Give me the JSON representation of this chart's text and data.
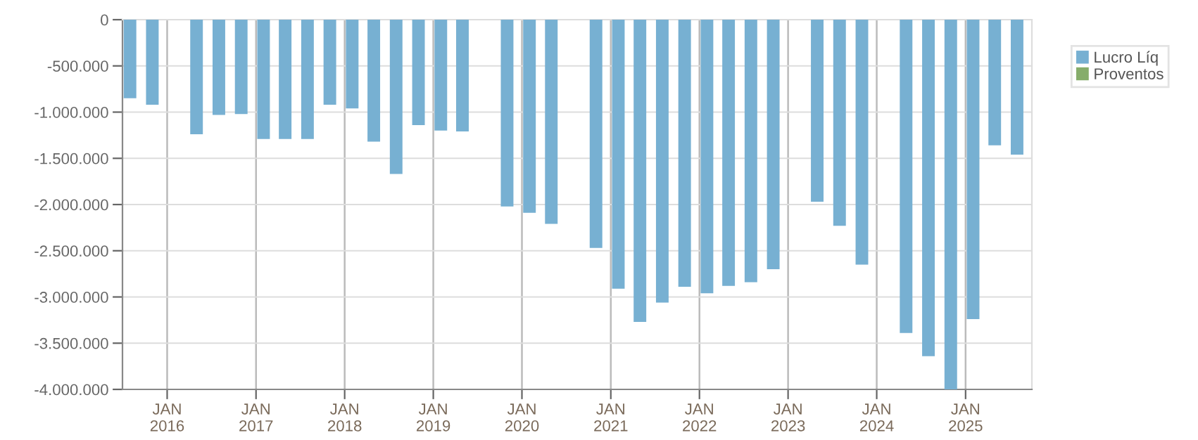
{
  "chart_data": {
    "type": "bar",
    "x": [
      "2015-08",
      "2015-11",
      "2016-05",
      "2016-08",
      "2016-11",
      "2017-02",
      "2017-05",
      "2017-08",
      "2017-11",
      "2018-02",
      "2018-05",
      "2018-08",
      "2018-11",
      "2019-02",
      "2019-05",
      "2019-11",
      "2020-02",
      "2020-05",
      "2020-11",
      "2021-02",
      "2021-05",
      "2021-08",
      "2021-11",
      "2022-02",
      "2022-05",
      "2022-08",
      "2022-11",
      "2023-05",
      "2023-08",
      "2023-11",
      "2024-05",
      "2024-08",
      "2024-11",
      "2025-02",
      "2025-05",
      "2025-08"
    ],
    "series": [
      {
        "name": "Lucro Líq",
        "color": "#77b0d2",
        "values": [
          -850000,
          -920000,
          -1240000,
          -1030000,
          -1020000,
          -1290000,
          -1290000,
          -1290000,
          -920000,
          -960000,
          -1320000,
          -1670000,
          -1140000,
          -1200000,
          -1210000,
          -2020000,
          -2090000,
          -2210000,
          -2470000,
          -2910000,
          -3270000,
          -3060000,
          -2890000,
          -2960000,
          -2880000,
          -2840000,
          -2700000,
          -1970000,
          -2230000,
          -2650000,
          -3390000,
          -3640000,
          -4000000,
          -3240000,
          -1360000,
          -1460000
        ]
      },
      {
        "name": "Proventos",
        "color": "#86ad6b",
        "values": [
          null,
          null,
          null,
          null,
          null,
          null,
          null,
          null,
          null,
          null,
          null,
          null,
          null,
          null,
          null,
          null,
          null,
          null,
          null,
          null,
          null,
          null,
          null,
          null,
          null,
          null,
          null,
          null,
          null,
          null,
          null,
          null,
          null,
          null,
          null,
          null
        ]
      }
    ],
    "xlim": [
      "2015-07-01",
      "2025-10-01"
    ],
    "xticks": [
      {
        "value": "2016-01-01",
        "label": "JAN\n2016"
      },
      {
        "value": "2017-01-01",
        "label": "JAN\n2017"
      },
      {
        "value": "2018-01-01",
        "label": "JAN\n2018"
      },
      {
        "value": "2019-01-01",
        "label": "JAN\n2019"
      },
      {
        "value": "2020-01-01",
        "label": "JAN\n2020"
      },
      {
        "value": "2021-01-01",
        "label": "JAN\n2021"
      },
      {
        "value": "2022-01-01",
        "label": "JAN\n2022"
      },
      {
        "value": "2023-01-01",
        "label": "JAN\n2023"
      },
      {
        "value": "2024-01-01",
        "label": "JAN\n2024"
      },
      {
        "value": "2025-01-01",
        "label": "JAN\n2025"
      }
    ],
    "ylim": [
      -4000000,
      0
    ],
    "yticks": [
      {
        "value": -4000000,
        "label": "-4.000.000"
      },
      {
        "value": -3500000,
        "label": "-3.500.000"
      },
      {
        "value": -3000000,
        "label": "-3.000.000"
      },
      {
        "value": -2500000,
        "label": "-2.500.000"
      },
      {
        "value": -2000000,
        "label": "-2.000.000"
      },
      {
        "value": -1500000,
        "label": "-1.500.000"
      },
      {
        "value": -1000000,
        "label": "-1.000.000"
      },
      {
        "value": -500000,
        "label": "-500.000"
      },
      {
        "value": 0,
        "label": "0"
      }
    ],
    "grid": true,
    "legend": "top right"
  }
}
